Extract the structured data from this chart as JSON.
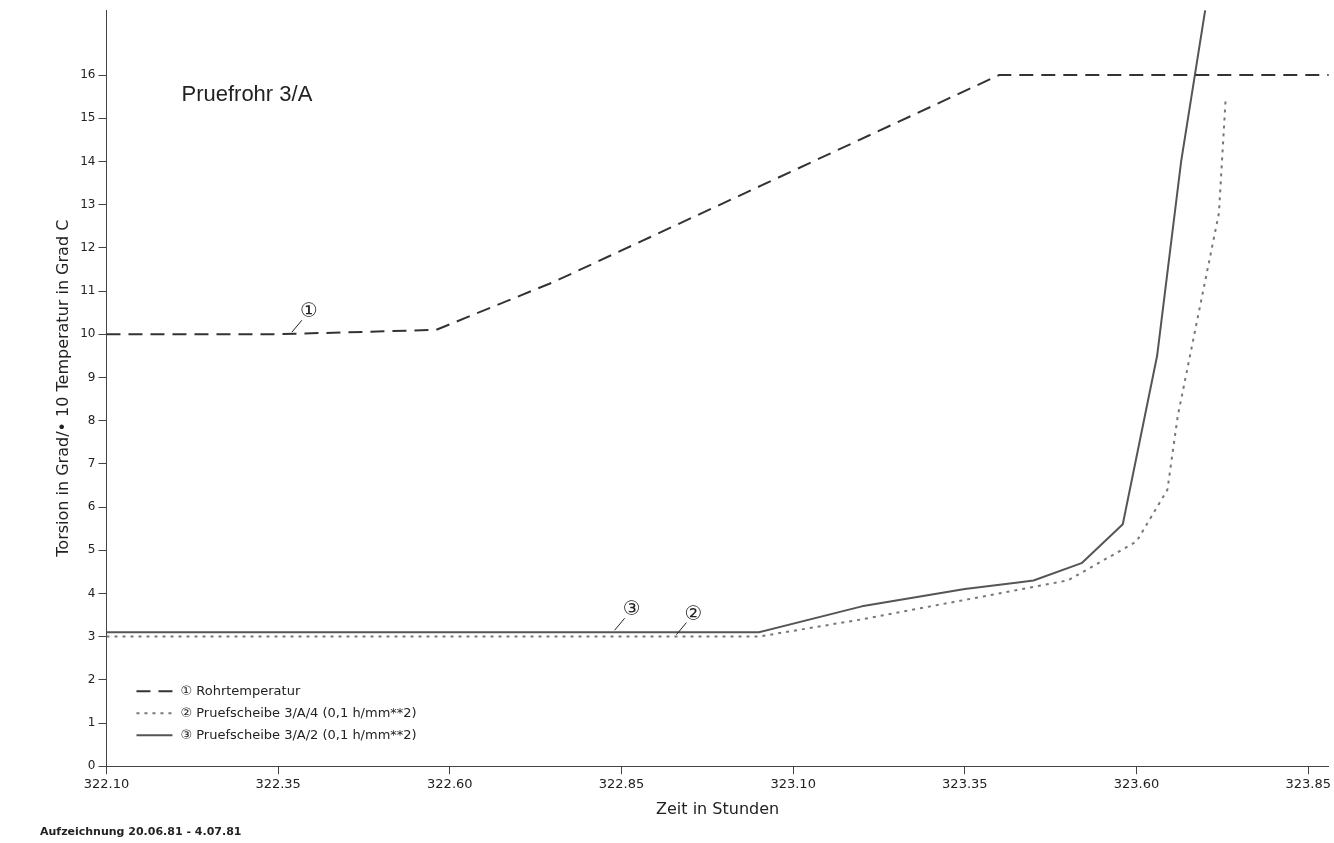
{
  "chart_data": {
    "type": "line",
    "title": "Pruefrohr 3/A",
    "xlabel": "Zeit in Stunden",
    "ylabel": "Torsion in Grad/• 10 Temperatur in Grad C",
    "xlim": [
      322.1,
      323.88
    ],
    "xticks": [
      {
        "value": 322.1,
        "label": "322.10"
      },
      322.35,
      {
        "value": 322.6,
        "label": "322.60"
      },
      322.85,
      {
        "value": 323.1,
        "label": "323.10"
      },
      323.35,
      {
        "value": 323.6,
        "label": "323.60"
      },
      323.85
    ],
    "ylim": [
      0,
      17.5
    ],
    "yticks": [
      0,
      1,
      2,
      3,
      4,
      5,
      6,
      7,
      8,
      9,
      10,
      11,
      12,
      13,
      14,
      15,
      16
    ],
    "grid": false,
    "legend": "bottom left",
    "marker": "none",
    "series": [
      {
        "name": "① Rohrtemperatur",
        "color": "#333333",
        "line_style": "dashed",
        "x": [
          322.1,
          322.35,
          322.58,
          322.75,
          323.4,
          323.88
        ],
        "values": [
          10,
          10,
          10.1,
          11.2,
          16,
          16
        ]
      },
      {
        "name": "② Pruefscheibe 3/A/4 (0,1 h/mm**2)",
        "color": "#777777",
        "line_style": "dotted",
        "x": [
          322.1,
          322.7,
          323.05,
          323.2,
          323.35,
          323.5,
          323.6,
          323.645,
          323.66,
          323.72,
          323.73
        ],
        "values": [
          3,
          3,
          3,
          3.4,
          3.85,
          4.3,
          5.2,
          6.4,
          8.1,
          12.8,
          15.5
        ]
      },
      {
        "name": "③ Pruefscheibe 3/A/2 (0,1 h/mm**2)",
        "color": "#555555",
        "line_style": "solid",
        "x": [
          322.1,
          322.85,
          323.05,
          323.2,
          323.35,
          323.45,
          323.52,
          323.58,
          323.63,
          323.665,
          323.7
        ],
        "values": [
          3.1,
          3.1,
          3.1,
          3.7,
          4.1,
          4.3,
          4.7,
          5.6,
          9.5,
          14,
          17.5
        ]
      }
    ],
    "annotations": [
      {
        "text": "①",
        "x": 322.37,
        "y": 10
      },
      {
        "text": "③",
        "x": 322.84,
        "y": 3.1
      },
      {
        "text": "②",
        "x": 322.93,
        "y": 3
      },
      "Aufzeichnung 20.06.81 - 4.07.81"
    ]
  }
}
